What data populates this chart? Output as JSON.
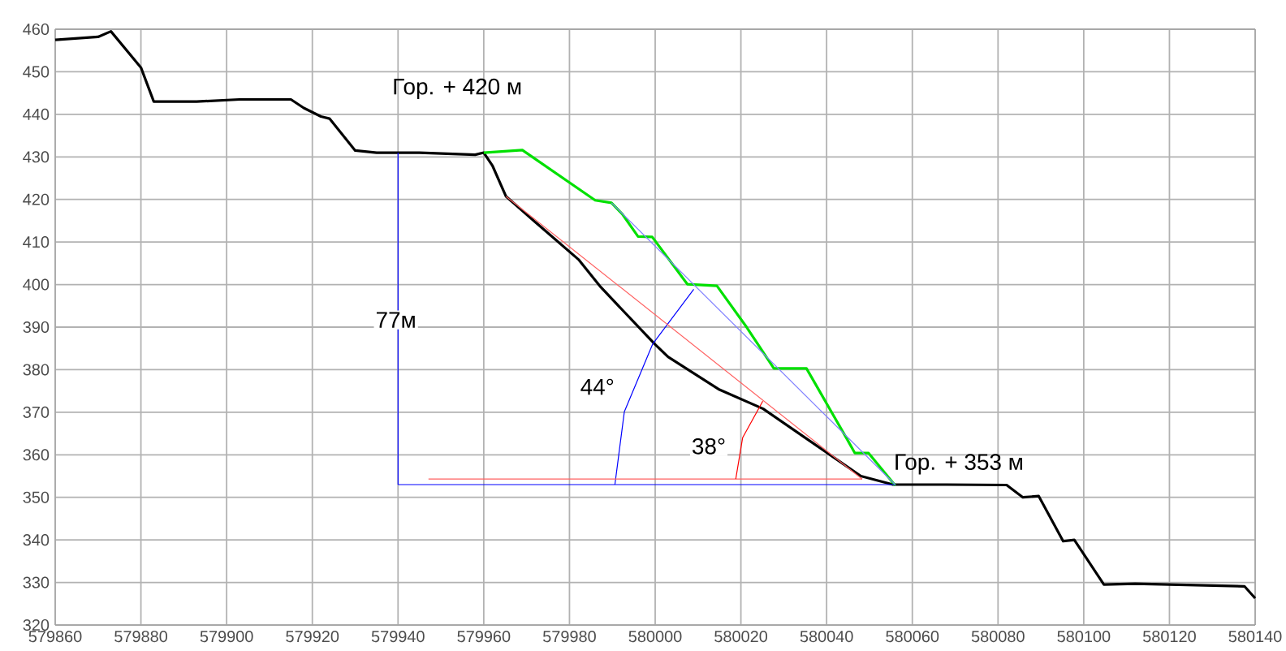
{
  "chart_data": {
    "type": "line",
    "xlim": [
      579860,
      580140
    ],
    "ylim": [
      320,
      460
    ],
    "xticks": [
      579860,
      579880,
      579900,
      579920,
      579940,
      579960,
      579980,
      580000,
      580020,
      580040,
      580060,
      580080,
      580100,
      580120,
      580140
    ],
    "yticks": [
      320,
      330,
      340,
      350,
      360,
      370,
      380,
      390,
      400,
      410,
      420,
      430,
      440,
      450,
      460
    ],
    "grid": true,
    "marker": "none",
    "line_style": "solid",
    "series": [
      {
        "color": "#000000",
        "x": [
          579860,
          579870,
          579873,
          579880,
          579883,
          579893,
          579903,
          579915,
          579918,
          579922,
          579924,
          579930,
          579935,
          579945,
          579958,
          579960,
          579962,
          579965.2,
          579972,
          579982.2,
          579987.3,
          579999.9,
          580003,
          580015,
          580025.2,
          580035.3,
          580048,
          580055.5,
          580068,
          580082,
          580085.8,
          580089.5,
          580095.2,
          580097.8,
          580104.7,
          580112,
          580137.5,
          580140
        ],
        "values": [
          457.5,
          458.2,
          459.5,
          451,
          443,
          443,
          443.5,
          443.5,
          441.5,
          439.5,
          439,
          431.5,
          431,
          431,
          430.5,
          431,
          428,
          420.7,
          414.7,
          405.8,
          399.4,
          386,
          383,
          375.3,
          370.8,
          363.8,
          355,
          353,
          353,
          352.9,
          350,
          350.3,
          339.7,
          340,
          329.5,
          329.7,
          329.1,
          326.3
        ]
      },
      {
        "color": "#00e000",
        "x": [
          579960,
          579969,
          579986,
          579989.8,
          579992.3,
          579996,
          579999.3,
          580007.5,
          580014.4,
          580021.4,
          580027.7,
          580035.3,
          580044.7,
          580046.6,
          580049.8,
          580056
        ],
        "values": [
          431,
          431.6,
          419.8,
          419.2,
          416.6,
          411.3,
          411.2,
          400.1,
          399.7,
          389.9,
          380.3,
          380.3,
          363.8,
          360.4,
          360.4,
          352.8
        ]
      },
      {
        "color": "#0000ff",
        "x": [
          579940,
          579940
        ],
        "values": [
          353,
          431
        ]
      },
      {
        "color": "#0000ff",
        "x": [
          579940,
          580056
        ],
        "values": [
          353,
          353
        ]
      },
      {
        "color": "#8080ff",
        "x": [
          579989.8,
          580056
        ],
        "values": [
          419.2,
          353
        ]
      },
      {
        "color": "#0000ff",
        "x": [
          579990.6,
          579992.8,
          579999.4,
          580009.0
        ],
        "values": [
          353.0,
          370.1,
          386.0,
          398.9
        ]
      },
      {
        "color": "#ff6060",
        "x": [
          579947.1,
          580048.3
        ],
        "values": [
          354.3,
          354.3
        ]
      },
      {
        "color": "#ff6060",
        "x": [
          579965.2,
          580048.3
        ],
        "values": [
          420.7,
          354.3
        ]
      },
      {
        "color": "#ff0000",
        "x": [
          580018.8,
          580020.4,
          580025.1
        ],
        "values": [
          354.3,
          364.0,
          372.6
        ]
      }
    ],
    "annotations": [
      "Гор. + 420 м",
      "Гор. + 353 м",
      {
        "text": "77м",
        "x": 579939.5,
        "y": 391.7
      },
      {
        "text": "44°",
        "x": 579986.5,
        "y": 376
      },
      {
        "text": "38°",
        "x": 580012.5,
        "y": 362
      }
    ]
  }
}
